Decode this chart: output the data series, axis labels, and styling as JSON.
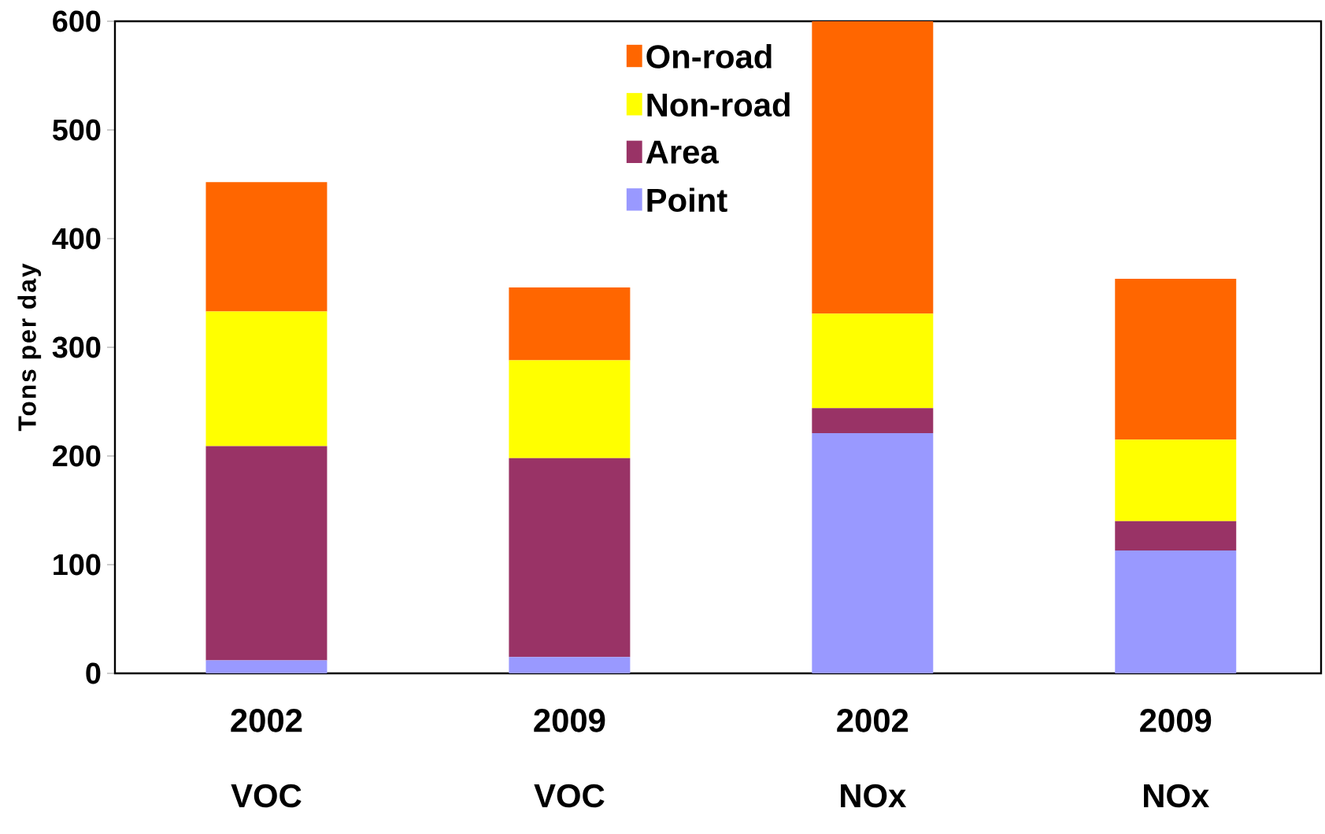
{
  "chart_data": {
    "type": "bar",
    "stacked": true,
    "ylabel": "Tons per day",
    "categories": [
      "2002 VOC",
      "2009 VOC",
      "2002 NOx",
      "2009 NOx"
    ],
    "series": [
      {
        "name": "Point",
        "color": "#9999ff",
        "values": [
          12,
          15,
          221,
          113
        ]
      },
      {
        "name": "Area",
        "color": "#993366",
        "values": [
          197,
          183,
          23,
          27
        ]
      },
      {
        "name": "Non-road",
        "color": "#ffff00",
        "values": [
          124,
          90,
          87,
          75
        ]
      },
      {
        "name": "On-road",
        "color": "#ff6600",
        "values": [
          119,
          67,
          269,
          148
        ]
      }
    ],
    "ylim": [
      0,
      600
    ],
    "yticks": [
      0,
      100,
      200,
      300,
      400,
      500,
      600
    ],
    "grid": false,
    "legend": "top"
  }
}
